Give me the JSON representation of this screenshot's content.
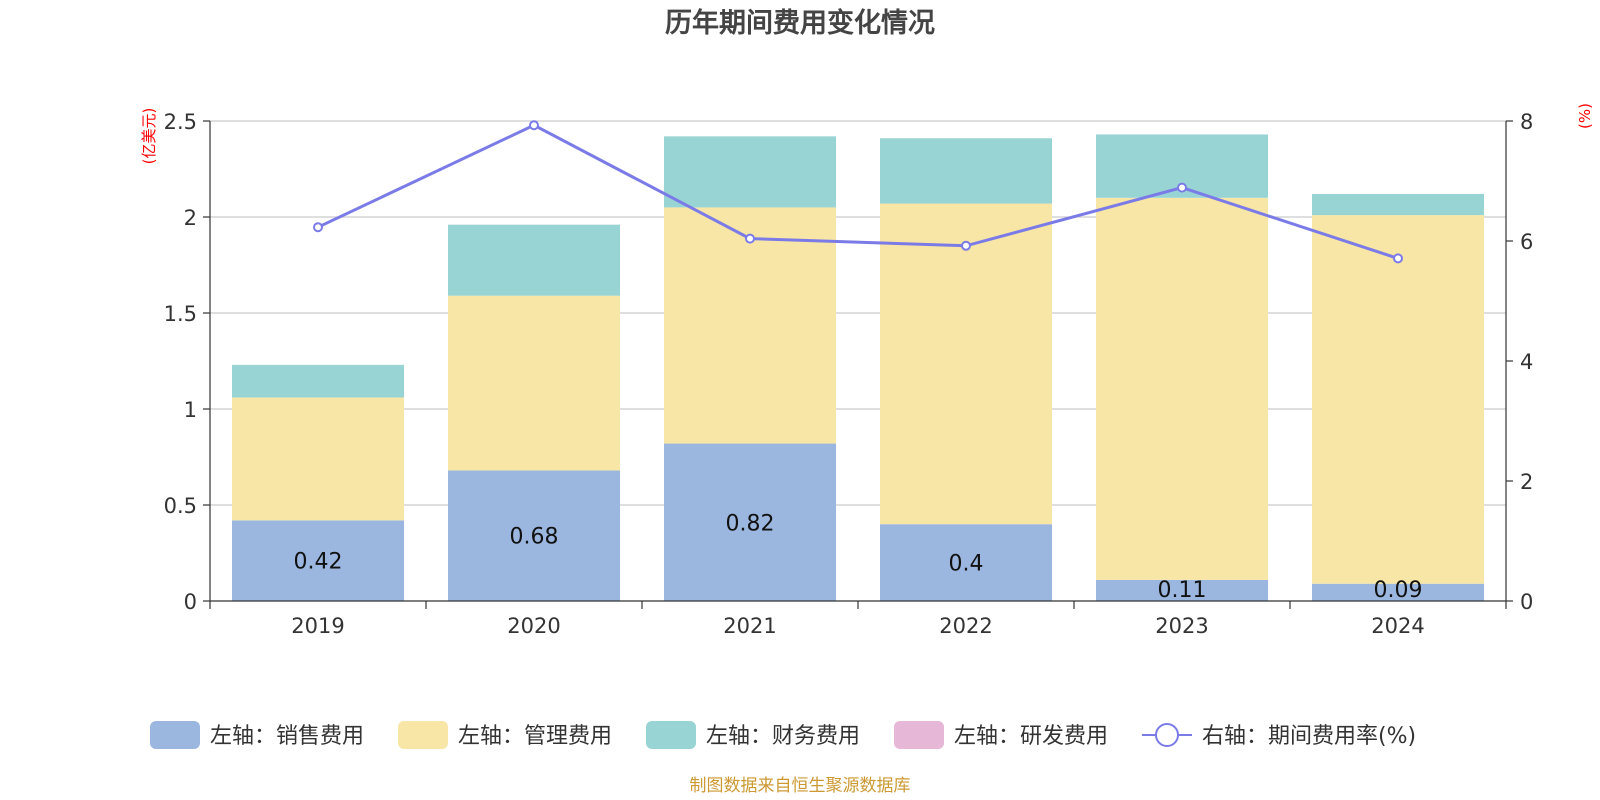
{
  "title": "历年期间费用变化情况",
  "source": "制图数据来自恒生聚源数据库",
  "chart_data": {
    "type": "bar",
    "stacked": true,
    "title": "历年期间费用变化情况",
    "categories": [
      "2019",
      "2020",
      "2021",
      "2022",
      "2023",
      "2024"
    ],
    "left_axis": {
      "unit": "(亿美元)",
      "ylim": [
        0,
        2.5
      ],
      "ticks": [
        "0",
        "0.5",
        "1",
        "1.5",
        "2",
        "2.5"
      ]
    },
    "right_axis": {
      "unit": "(%)",
      "ylim": [
        0,
        8
      ],
      "ticks": [
        "0",
        "2",
        "4",
        "6",
        "8"
      ]
    },
    "grid": true,
    "legend_position": "bottom",
    "series": [
      {
        "name": "左轴：销售费用",
        "type": "bar",
        "axis": "left",
        "color": "#9bb7e0",
        "values": [
          0.42,
          0.68,
          0.82,
          0.4,
          0.11,
          0.09
        ],
        "labels": [
          "0.42",
          "0.68",
          "0.82",
          "0.4",
          "0.11",
          "0.09"
        ]
      },
      {
        "name": "左轴：管理费用",
        "type": "bar",
        "axis": "left",
        "color": "#f7e6a6",
        "values": [
          0.64,
          0.91,
          1.23,
          1.67,
          1.99,
          1.92
        ]
      },
      {
        "name": "左轴：财务费用",
        "type": "bar",
        "axis": "left",
        "color": "#98d4d4",
        "values": [
          0.17,
          0.37,
          0.37,
          0.34,
          0.33,
          0.11
        ]
      },
      {
        "name": "左轴：研发费用",
        "type": "bar",
        "axis": "left",
        "color": "#e7b7d7",
        "values": [
          0,
          0,
          0,
          0,
          0,
          0
        ]
      },
      {
        "name": "右轴：期间费用率(%)",
        "type": "line",
        "axis": "right",
        "color": "#7b7be8",
        "values": [
          6.23,
          7.93,
          6.04,
          5.92,
          6.89,
          5.71
        ]
      }
    ]
  }
}
